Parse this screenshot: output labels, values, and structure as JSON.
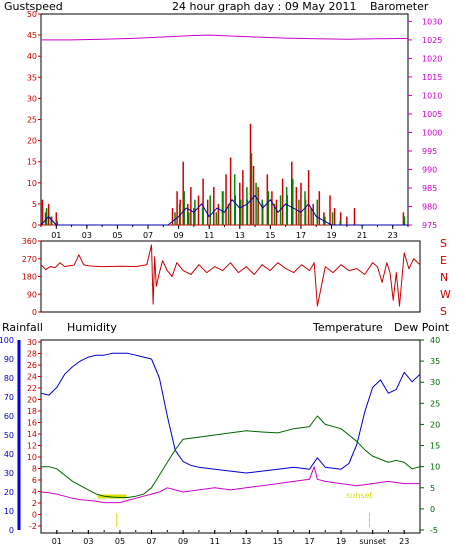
{
  "title": "24 hour graph day : 09 May 2011",
  "colors": {
    "gust": "#cc0000",
    "wind": "#008800",
    "avg": "#0000aa",
    "baro": "#cc00cc",
    "dir": "#cc0000",
    "humidity": "#0000cc",
    "temperature": "#006600",
    "dewpoint": "#cc00cc",
    "rainfall": "#cc0000",
    "sun": "#dddd00",
    "grid": "#bbbbbb",
    "frame": "#000000"
  },
  "hours": [
    "01",
    "03",
    "05",
    "07",
    "09",
    "11",
    "13",
    "15",
    "17",
    "19",
    "21",
    "23"
  ],
  "hours_bottom": [
    "01",
    "03",
    "05",
    "07",
    "09",
    "11",
    "13",
    "15",
    "17",
    "19",
    "sunset",
    "23"
  ],
  "chart_data": [
    {
      "type": "line",
      "name": "wind",
      "labels": {
        "left": "Gustspeed",
        "right": "Barometer"
      },
      "y_left_ticks": [
        "0",
        "5",
        "10",
        "15",
        "20",
        "25",
        "30",
        "35",
        "40",
        "45",
        "50"
      ],
      "y_right_ticks": [
        "975",
        "980",
        "985",
        "990",
        "995",
        "1000",
        "1005",
        "1010",
        "1015",
        "1020",
        "1025",
        "1030"
      ],
      "ylim_left": [
        0,
        50
      ],
      "ylim_right": [
        975,
        1032
      ],
      "xlim": [
        0,
        24
      ],
      "barometer": {
        "x": [
          0,
          2,
          4,
          6,
          8,
          10,
          11,
          12,
          14,
          16,
          18,
          20,
          22,
          24
        ],
        "y": [
          1025,
          1025,
          1025.2,
          1025.4,
          1025.8,
          1026.2,
          1026.3,
          1026.1,
          1025.8,
          1025.5,
          1025.3,
          1025.2,
          1025.3,
          1025.4
        ]
      },
      "gust": {
        "x": [
          0,
          0.1,
          0.3,
          0.5,
          0.7,
          1.0,
          1.2,
          1.5,
          8.3,
          8.6,
          8.9,
          9.1,
          9.3,
          9.6,
          9.8,
          10.0,
          10.3,
          10.6,
          10.9,
          11.3,
          11.6,
          11.9,
          12.1,
          12.4,
          12.7,
          13.0,
          13.2,
          13.5,
          13.7,
          13.9,
          14.2,
          14.5,
          14.8,
          15.1,
          15.4,
          15.8,
          16.1,
          16.4,
          16.7,
          17.0,
          17.3,
          17.5,
          17.8,
          18.2,
          18.5,
          18.9,
          19.2,
          19.6,
          20.0,
          20.5,
          21.0,
          23.7,
          24
        ],
        "y": [
          0,
          6,
          3,
          5,
          2,
          3,
          0,
          0,
          0,
          4,
          8,
          6,
          15,
          5,
          9,
          4,
          7,
          11,
          6,
          9,
          5,
          8,
          12,
          16,
          7,
          10,
          13,
          6,
          24,
          14,
          9,
          5,
          12,
          8,
          6,
          11,
          7,
          15,
          9,
          10,
          6,
          13,
          5,
          8,
          3,
          7,
          4,
          3,
          2,
          4,
          0,
          3,
          0
        ]
      },
      "wind": {
        "x": [
          0,
          0.3,
          0.6,
          1.0,
          8.3,
          8.7,
          9.0,
          9.3,
          9.6,
          10.0,
          10.5,
          11.0,
          11.4,
          11.8,
          12.2,
          12.6,
          13.0,
          13.4,
          13.7,
          14.0,
          14.4,
          14.8,
          15.2,
          15.6,
          16.0,
          16.4,
          16.8,
          17.2,
          17.6,
          18.0,
          18.5,
          19.0,
          19.5,
          20.0,
          23.7,
          24
        ],
        "y": [
          0,
          4,
          2,
          1,
          0,
          3,
          5,
          8,
          3,
          6,
          4,
          7,
          3,
          8,
          5,
          12,
          6,
          9,
          17,
          10,
          6,
          8,
          5,
          7,
          9,
          11,
          6,
          8,
          4,
          6,
          2,
          3,
          1,
          0,
          2,
          0
        ]
      },
      "average": {
        "x": [
          0,
          0.5,
          1.0,
          8.3,
          9.0,
          9.5,
          10.0,
          10.5,
          11.0,
          11.5,
          12.0,
          12.5,
          13.0,
          13.5,
          14.0,
          14.5,
          15.0,
          15.5,
          16.0,
          16.5,
          17.0,
          17.5,
          18.0,
          18.5,
          19.0,
          24
        ],
        "y": [
          0,
          2,
          0,
          0,
          2,
          4,
          3,
          5,
          2,
          4,
          3,
          6,
          4,
          5,
          7,
          4,
          6,
          3,
          5,
          4,
          3,
          5,
          2,
          1,
          0,
          0
        ]
      }
    },
    {
      "type": "line",
      "name": "direction",
      "labels": {
        "right_compass": [
          "S",
          "E",
          "N",
          "W",
          "S"
        ]
      },
      "y_left_ticks": [
        "0",
        "90",
        "180",
        "270",
        "360"
      ],
      "ylim": [
        0,
        360
      ],
      "xlim": [
        0,
        24
      ],
      "direction": {
        "x": [
          0,
          0.3,
          0.6,
          0.9,
          1.2,
          1.5,
          1.8,
          2.1,
          2.4,
          2.7,
          3.0,
          3.3,
          4,
          5,
          6,
          6.7,
          7.0,
          7.1,
          7.2,
          7.3,
          7.5,
          7.7,
          8.0,
          8.3,
          8.6,
          9,
          9.5,
          10,
          10.5,
          11,
          11.5,
          12,
          12.5,
          13,
          13.5,
          14,
          14.5,
          15,
          15.5,
          16,
          16.5,
          17,
          17.3,
          17.5,
          18,
          18.5,
          19,
          19.5,
          20,
          20.5,
          21,
          21.3,
          21.6,
          21.9,
          22.1,
          22.3,
          22.5,
          22.7,
          23,
          23.3,
          23.6,
          24
        ],
        "y": [
          240,
          215,
          230,
          225,
          250,
          230,
          235,
          238,
          290,
          240,
          235,
          232,
          230,
          232,
          230,
          240,
          340,
          40,
          280,
          130,
          200,
          260,
          210,
          180,
          250,
          210,
          190,
          240,
          200,
          230,
          210,
          250,
          200,
          230,
          190,
          240,
          210,
          250,
          220,
          200,
          240,
          210,
          250,
          30,
          230,
          200,
          240,
          210,
          220,
          190,
          250,
          230,
          150,
          250,
          200,
          60,
          200,
          30,
          300,
          220,
          270,
          240
        ]
      }
    },
    {
      "type": "line",
      "name": "temperature-humidity",
      "labels": {
        "rainfall": "Rainfall",
        "humidity": "Humidity",
        "temperature": "Temperature",
        "dewpoint": "Dew Point",
        "sunset": "sunset"
      },
      "y_humidity_ticks": [
        "0",
        "10",
        "20",
        "30",
        "40",
        "50",
        "60",
        "70",
        "80",
        "90",
        "100"
      ],
      "y_temp_left_ticks": [
        "-2",
        "0",
        "2",
        "4",
        "6",
        "8",
        "10",
        "12",
        "14",
        "16",
        "18",
        "20",
        "22",
        "24",
        "26",
        "28",
        "30"
      ],
      "y_temp_right_ticks": [
        "-5",
        "0",
        "5",
        "10",
        "15",
        "20",
        "25",
        "30",
        "35",
        "40"
      ],
      "ylim_temp": [
        -5,
        40
      ],
      "ylim_humidity": [
        0,
        100
      ],
      "xlim": [
        0,
        24
      ],
      "sun_markers": [
        4.8,
        20.8
      ],
      "humidity": {
        "x": [
          0,
          0.5,
          1,
          1.5,
          2,
          2.5,
          3,
          3.5,
          4,
          4.5,
          5,
          5.5,
          6,
          6.5,
          7,
          7.5,
          8,
          8.5,
          9,
          9.5,
          10,
          11,
          12,
          13,
          14,
          15,
          16,
          17,
          17.5,
          18,
          19,
          19.5,
          20,
          20.5,
          21,
          21.5,
          22,
          22.5,
          23,
          23.5,
          24
        ],
        "y": [
          72,
          71,
          75,
          82,
          86,
          89,
          91,
          92,
          92,
          93,
          93,
          93,
          92,
          91,
          90,
          80,
          60,
          42,
          36,
          34,
          33,
          32,
          31,
          30,
          31,
          32,
          33,
          32,
          38,
          33,
          32,
          35,
          45,
          62,
          75,
          79,
          72,
          74,
          83,
          78,
          82
        ]
      },
      "temperature": {
        "x": [
          0,
          0.5,
          1,
          1.5,
          2,
          2.5,
          3,
          3.5,
          4,
          4.5,
          5,
          5.5,
          6,
          6.5,
          7,
          7.5,
          8,
          8.5,
          9,
          10,
          11,
          12,
          13,
          14,
          15,
          16,
          17,
          17.5,
          18,
          19,
          19.5,
          20,
          20.5,
          21,
          22,
          22.5,
          23,
          23.5,
          24
        ],
        "y": [
          10,
          10,
          9.5,
          8,
          6.5,
          5.5,
          4.5,
          3.5,
          3,
          2.8,
          2.7,
          2.7,
          3,
          3.5,
          5,
          8,
          11,
          14,
          16.5,
          17,
          17.5,
          18,
          18.5,
          18.2,
          18,
          19,
          19.5,
          22,
          20,
          19,
          17.5,
          16,
          14,
          12.5,
          11,
          11.5,
          11,
          9.5,
          10
        ]
      },
      "dewpoint": {
        "x": [
          0,
          0.5,
          1,
          1.5,
          2,
          2.5,
          3,
          3.5,
          4,
          4.5,
          5,
          5.5,
          6,
          6.5,
          7,
          7.5,
          8,
          8.5,
          9,
          10,
          11,
          12,
          13,
          14,
          15,
          16,
          17,
          17.3,
          17.5,
          18,
          19,
          20,
          21,
          22,
          23,
          24
        ],
        "y": [
          4,
          3.8,
          3.5,
          3,
          2.5,
          2.2,
          2,
          1.8,
          1.5,
          1.5,
          1.5,
          2,
          2.5,
          3,
          3.5,
          4,
          5,
          4.5,
          4,
          4.5,
          5,
          4.5,
          5,
          5.5,
          6,
          6.5,
          7,
          10,
          7,
          6.5,
          6,
          5.5,
          6,
          6.5,
          6,
          6
        ]
      }
    }
  ]
}
